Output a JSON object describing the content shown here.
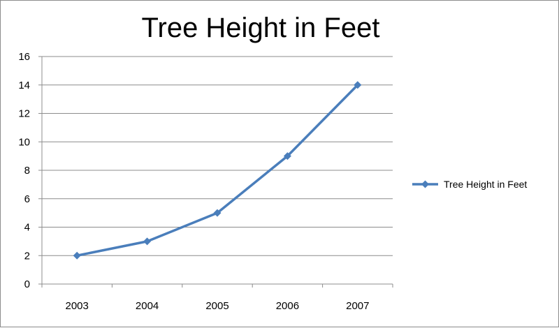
{
  "chart_data": {
    "type": "line",
    "title": "Tree Height in Feet",
    "categories": [
      "2003",
      "2004",
      "2005",
      "2006",
      "2007"
    ],
    "series": [
      {
        "name": "Tree Height in Feet",
        "values": [
          2,
          3,
          5,
          9,
          14
        ],
        "color": "#4a7ebb"
      }
    ],
    "ylim": [
      0,
      16
    ],
    "yticks": [
      0,
      2,
      4,
      6,
      8,
      10,
      12,
      14,
      16
    ],
    "grid": true,
    "legend_position": "right",
    "marker": "diamond"
  }
}
